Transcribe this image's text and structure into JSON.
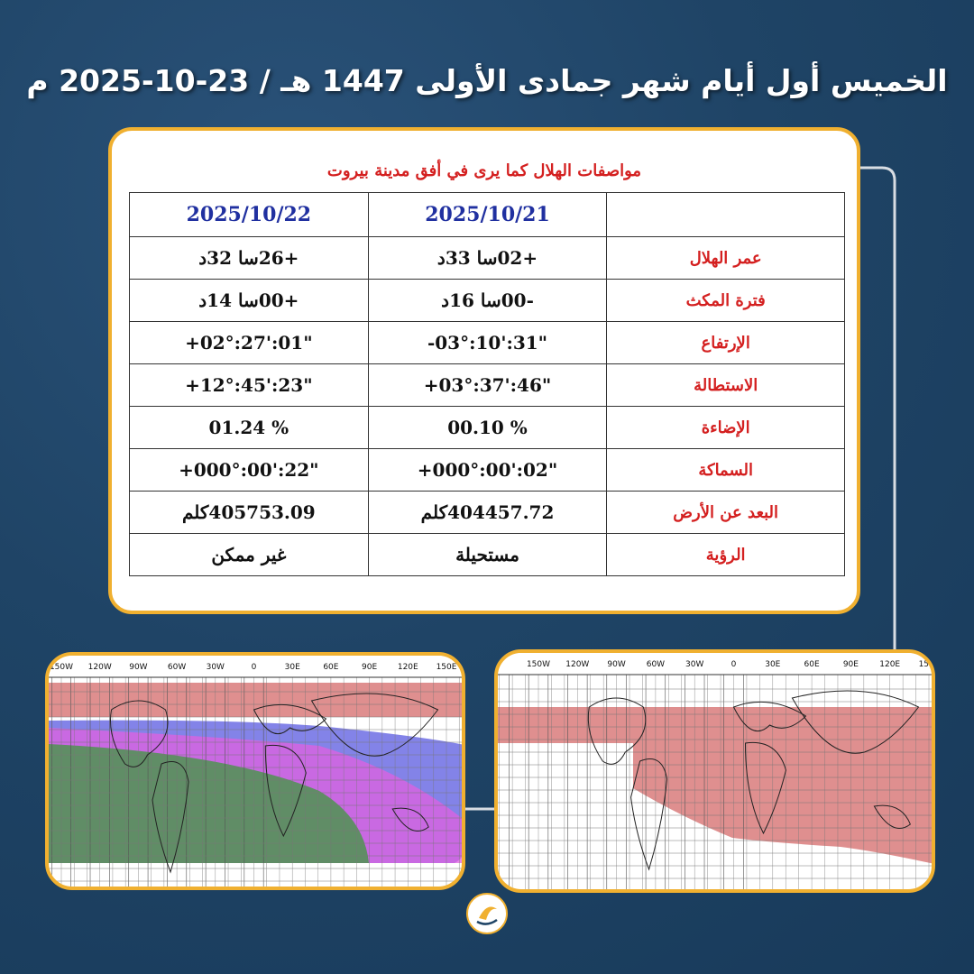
{
  "header": {
    "title": "الخميس أول أيام شهر جمادى الأولى 1447 هـ / 23-10-2025 م"
  },
  "table": {
    "caption": "مواصفات الهلال كما يرى في أفق مدينة بيروت",
    "columns": [
      "2025/10/21",
      "2025/10/22"
    ],
    "rows": [
      [
        "عمر الهلال",
        "+02سا 33د",
        "+26سا 32د"
      ],
      [
        "فترة المكث",
        "-00سا 16د",
        "+00سا 14د"
      ],
      [
        "الإرتفاع",
        "-03°:10':31\"",
        "+02°:27':01\""
      ],
      [
        "الاستطالة",
        "+03°:37':46\"",
        "+12°:45':23\""
      ],
      [
        "الإضاءة",
        "00.10 %",
        "01.24 %"
      ],
      [
        "السماكة",
        "+000°:00':02\"",
        "+000°:00':22\""
      ],
      [
        "البعد عن الأرض",
        "404457.72كلم",
        "405753.09كلم"
      ],
      [
        "الرؤية",
        "مستحيلة",
        "غير ممكن"
      ]
    ]
  },
  "maps": {
    "labels": [
      "150W",
      "120W",
      "90W",
      "60W",
      "30W",
      "0",
      "30E",
      "60E",
      "90E",
      "120E",
      "150E"
    ]
  }
}
